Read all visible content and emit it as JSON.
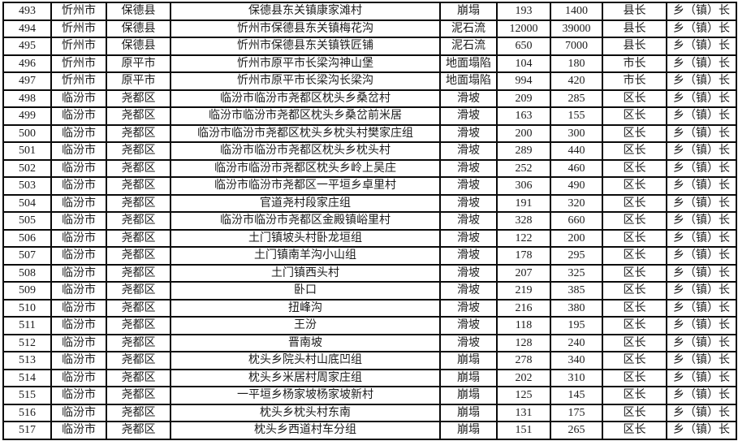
{
  "page": {
    "background_color": "#ffffff",
    "border_color": "#0a0a0a",
    "text_color": "#1c1c1c"
  },
  "table": {
    "rows": [
      {
        "id": "493",
        "city": "忻州市",
        "county": "保德县",
        "location": "保德县东关镇康家滩村",
        "hazard": "崩塌",
        "num1": "193",
        "num2": "1400",
        "official": "县长",
        "township": "乡（镇）长"
      },
      {
        "id": "494",
        "city": "忻州市",
        "county": "保德县",
        "location": "忻州市保德县东关镇梅花沟",
        "hazard": "泥石流",
        "num1": "12000",
        "num2": "39000",
        "official": "县长",
        "township": "乡（镇）长"
      },
      {
        "id": "495",
        "city": "忻州市",
        "county": "保德县",
        "location": "忻州市保德县东关镇铁匠铺",
        "hazard": "泥石流",
        "num1": "650",
        "num2": "7000",
        "official": "县长",
        "township": "乡（镇）长"
      },
      {
        "id": "496",
        "city": "忻州市",
        "county": "原平市",
        "location": "忻州市原平市长梁沟神山堡",
        "hazard": "地面塌陷",
        "num1": "104",
        "num2": "180",
        "official": "市长",
        "township": "乡（镇）长"
      },
      {
        "id": "497",
        "city": "忻州市",
        "county": "原平市",
        "location": "忻州市原平市长梁沟长梁沟",
        "hazard": "地面塌陷",
        "num1": "994",
        "num2": "420",
        "official": "市长",
        "township": "乡（镇）长"
      },
      {
        "id": "498",
        "city": "临汾市",
        "county": "尧都区",
        "location": "临汾市临汾市尧都区枕头乡桑岔村",
        "hazard": "滑坡",
        "num1": "209",
        "num2": "285",
        "official": "区长",
        "township": "乡（镇）长"
      },
      {
        "id": "499",
        "city": "临汾市",
        "county": "尧都区",
        "location": "临汾市临汾市尧都区枕头乡桑岔前米居",
        "hazard": "滑坡",
        "num1": "163",
        "num2": "155",
        "official": "区长",
        "township": "乡（镇）长"
      },
      {
        "id": "500",
        "city": "临汾市",
        "county": "尧都区",
        "location": "临汾市临汾市尧都区枕头乡枕头村樊家庄组",
        "hazard": "滑坡",
        "num1": "200",
        "num2": "300",
        "official": "区长",
        "township": "乡（镇）长"
      },
      {
        "id": "501",
        "city": "临汾市",
        "county": "尧都区",
        "location": "临汾市临汾市尧都区枕头乡枕头村",
        "hazard": "滑坡",
        "num1": "289",
        "num2": "440",
        "official": "区长",
        "township": "乡（镇）长"
      },
      {
        "id": "502",
        "city": "临汾市",
        "county": "尧都区",
        "location": "临汾市临汾市尧都区枕头乡岭上吴庄",
        "hazard": "滑坡",
        "num1": "252",
        "num2": "460",
        "official": "区长",
        "township": "乡（镇）长"
      },
      {
        "id": "503",
        "city": "临汾市",
        "county": "尧都区",
        "location": "临汾市临汾市尧都区一平垣乡卓里村",
        "hazard": "滑坡",
        "num1": "306",
        "num2": "490",
        "official": "区长",
        "township": "乡（镇）长"
      },
      {
        "id": "504",
        "city": "临汾市",
        "county": "尧都区",
        "location": "官道尧村段家庄组",
        "hazard": "滑坡",
        "num1": "191",
        "num2": "320",
        "official": "区长",
        "township": "乡（镇）长"
      },
      {
        "id": "505",
        "city": "临汾市",
        "county": "尧都区",
        "location": "临汾市临汾市尧都区金殿镇峪里村",
        "hazard": "滑坡",
        "num1": "328",
        "num2": "660",
        "official": "区长",
        "township": "乡（镇）长"
      },
      {
        "id": "506",
        "city": "临汾市",
        "county": "尧都区",
        "location": "土门镇坡头村卧龙垣组",
        "hazard": "滑坡",
        "num1": "122",
        "num2": "200",
        "official": "区长",
        "township": "乡（镇）长"
      },
      {
        "id": "507",
        "city": "临汾市",
        "county": "尧都区",
        "location": "土门镇南羊沟小山组",
        "hazard": "滑坡",
        "num1": "178",
        "num2": "295",
        "official": "区长",
        "township": "乡（镇）长"
      },
      {
        "id": "508",
        "city": "临汾市",
        "county": "尧都区",
        "location": "土门镇西头村",
        "hazard": "滑坡",
        "num1": "207",
        "num2": "325",
        "official": "区长",
        "township": "乡（镇）长"
      },
      {
        "id": "509",
        "city": "临汾市",
        "county": "尧都区",
        "location": "卧口",
        "hazard": "滑坡",
        "num1": "219",
        "num2": "385",
        "official": "区长",
        "township": "乡（镇）长"
      },
      {
        "id": "510",
        "city": "临汾市",
        "county": "尧都区",
        "location": "扭峰沟",
        "hazard": "滑坡",
        "num1": "216",
        "num2": "380",
        "official": "区长",
        "township": "乡（镇）长"
      },
      {
        "id": "511",
        "city": "临汾市",
        "county": "尧都区",
        "location": "王汾",
        "hazard": "滑坡",
        "num1": "118",
        "num2": "195",
        "official": "区长",
        "township": "乡（镇）长"
      },
      {
        "id": "512",
        "city": "临汾市",
        "county": "尧都区",
        "location": "晋南坡",
        "hazard": "滑坡",
        "num1": "128",
        "num2": "240",
        "official": "区长",
        "township": "乡（镇）长"
      },
      {
        "id": "513",
        "city": "临汾市",
        "county": "尧都区",
        "location": "枕头乡院头村山底凹组",
        "hazard": "崩塌",
        "num1": "278",
        "num2": "340",
        "official": "区长",
        "township": "乡（镇）长"
      },
      {
        "id": "514",
        "city": "临汾市",
        "county": "尧都区",
        "location": "枕头乡米居村周家庄组",
        "hazard": "崩塌",
        "num1": "202",
        "num2": "310",
        "official": "区长",
        "township": "乡（镇）长"
      },
      {
        "id": "515",
        "city": "临汾市",
        "county": "尧都区",
        "location": "一平垣乡杨家坡杨家坡新村",
        "hazard": "崩塌",
        "num1": "125",
        "num2": "145",
        "official": "区长",
        "township": "乡（镇）长"
      },
      {
        "id": "516",
        "city": "临汾市",
        "county": "尧都区",
        "location": "枕头乡枕头村东南",
        "hazard": "崩塌",
        "num1": "131",
        "num2": "175",
        "official": "区长",
        "township": "乡（镇）长"
      },
      {
        "id": "517",
        "city": "临汾市",
        "county": "尧都区",
        "location": "枕头乡西道村车分组",
        "hazard": "崩塌",
        "num1": "151",
        "num2": "265",
        "official": "区长",
        "township": "乡（镇）长"
      }
    ]
  }
}
